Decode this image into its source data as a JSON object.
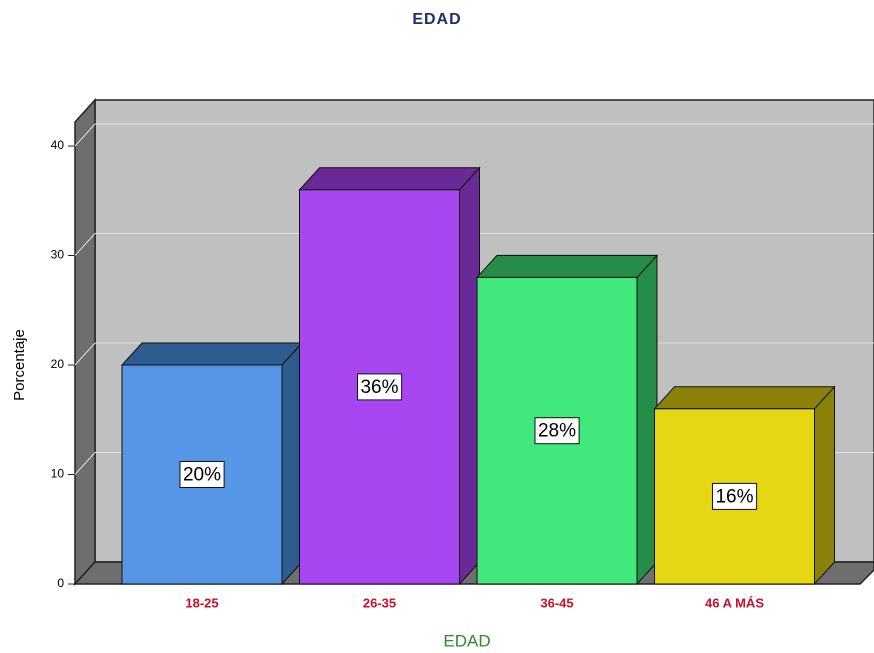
{
  "chart_data": {
    "type": "bar",
    "title": "EDAD",
    "x_label": "EDAD",
    "y_label": "Porcentaje",
    "categories": [
      "18-25",
      "26-35",
      "36-45",
      "46 A MÁS"
    ],
    "values": [
      20,
      36,
      28,
      16
    ],
    "value_labels": [
      "20%",
      "36%",
      "28%",
      "16%"
    ],
    "colors": [
      "#5596e6",
      "#a846f2",
      "#41e87c",
      "#e5d713"
    ],
    "side_colors": [
      "#2f5c8f",
      "#692a97",
      "#268c4a",
      "#8a8108"
    ],
    "ylim": [
      0,
      40
    ],
    "yticks": [
      0,
      10,
      20,
      30,
      40
    ],
    "grid": true
  }
}
